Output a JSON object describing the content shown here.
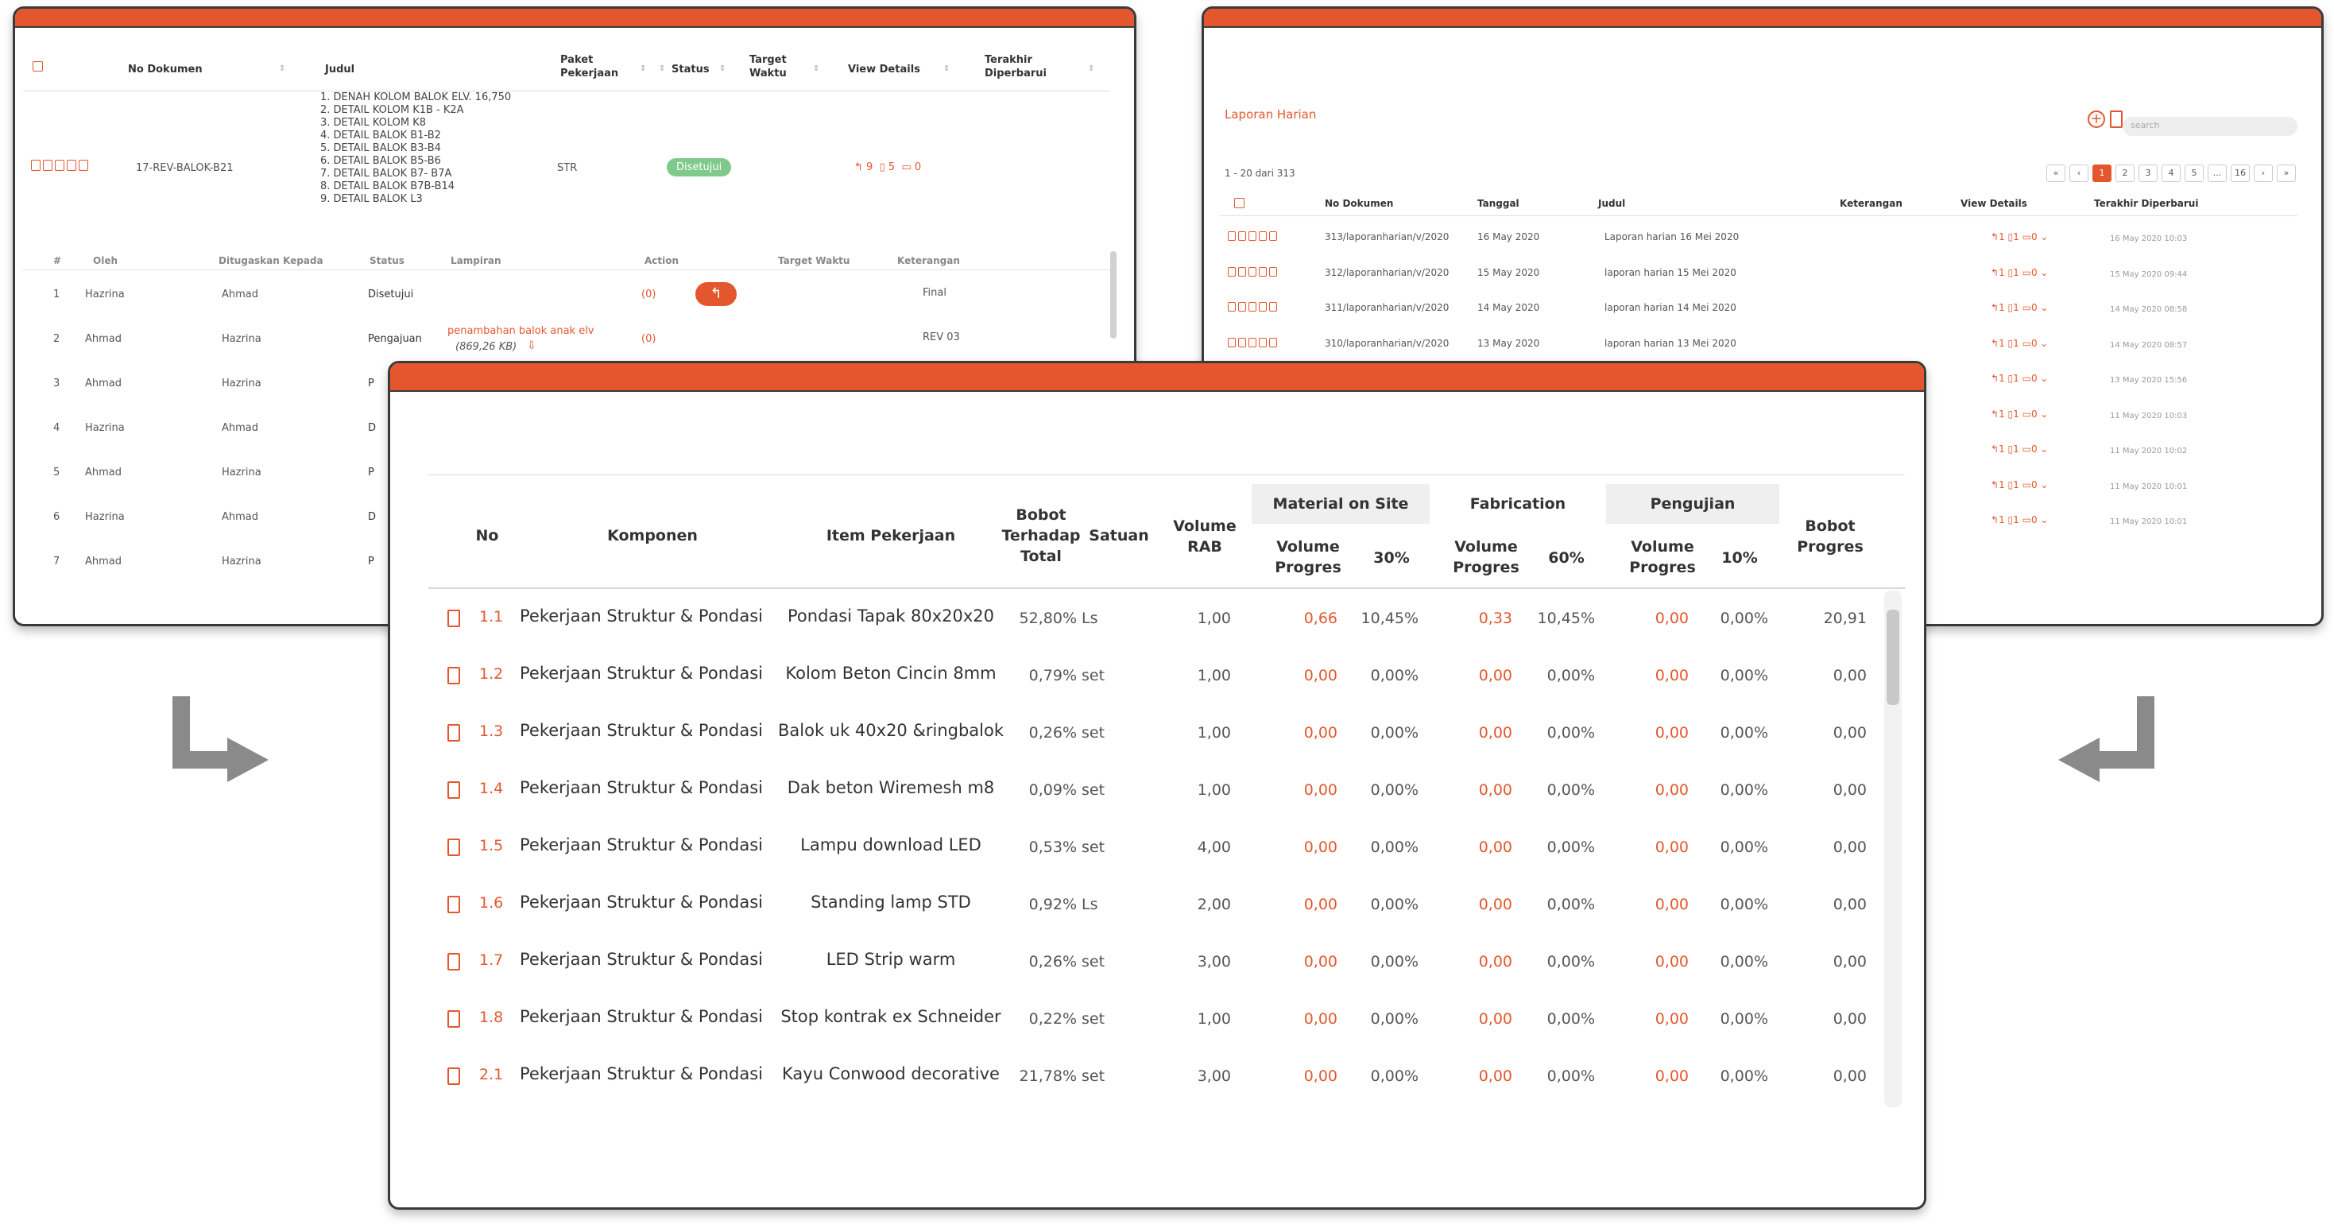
{
  "doc_window": {
    "headers": [
      "No Dokumen",
      "Judul",
      "Paket Pekerjaan",
      "Status",
      "Target Waktu",
      "View Details",
      "Terakhir Diperbarui"
    ],
    "row": {
      "no_dokumen": "17-REV-BALOK-B21",
      "judul_items": [
        "1. DENAH KOLOM BALOK ELV. 16,750",
        "2. DETAIL KOLOM K1B - K2A",
        "3. DETAIL KOLOM K8",
        "4. DETAIL BALOK B1-B2",
        "5. DETAIL BALOK B3-B4",
        "6. DETAIL BALOK B5-B6",
        "7. DETAIL BALOK B7- B7A",
        "8. DETAIL BALOK B7B-B14",
        "9. DETAIL BALOK L3"
      ],
      "paket": "STR",
      "status": "Disetujui",
      "view_revisions": "9",
      "view_files": "5",
      "view_comments": "0"
    },
    "sub_headers": [
      "#",
      "Oleh",
      "Ditugaskan Kepada",
      "Status",
      "Lampiran",
      "Action",
      "Target Waktu",
      "Keterangan"
    ],
    "sub_rows": [
      {
        "no": "1",
        "oleh": "Hazrina",
        "kepada": "Ahmad",
        "status": "Disetujui",
        "lampiran": "",
        "lampiran_size": "",
        "comments": "(0)",
        "keterangan": "Final"
      },
      {
        "no": "2",
        "oleh": "Ahmad",
        "kepada": "Hazrina",
        "status": "Pengajuan",
        "lampiran": "penambahan balok anak elv",
        "lampiran_size": "(869,26 KB)",
        "comments": "(0)",
        "keterangan": "REV 03"
      },
      {
        "no": "3",
        "oleh": "Ahmad",
        "kepada": "Hazrina",
        "status": "P",
        "lampiran": "",
        "lampiran_size": "",
        "comments": "",
        "keterangan": ""
      },
      {
        "no": "4",
        "oleh": "Hazrina",
        "kepada": "Ahmad",
        "status": "D",
        "lampiran": "",
        "lampiran_size": "",
        "comments": "",
        "keterangan": ""
      },
      {
        "no": "5",
        "oleh": "Ahmad",
        "kepada": "Hazrina",
        "status": "P",
        "lampiran": "",
        "lampiran_size": "",
        "comments": "",
        "keterangan": ""
      },
      {
        "no": "6",
        "oleh": "Hazrina",
        "kepada": "Ahmad",
        "status": "D",
        "lampiran": "",
        "lampiran_size": "",
        "comments": "",
        "keterangan": ""
      },
      {
        "no": "7",
        "oleh": "Ahmad",
        "kepada": "Hazrina",
        "status": "P",
        "lampiran": "",
        "lampiran_size": "",
        "comments": "",
        "keterangan": ""
      }
    ]
  },
  "laporan_window": {
    "title": "Laporan Harian",
    "search_placeholder": "search",
    "count_text": "1 - 20 dari 313",
    "pager": [
      "«",
      "‹",
      "1",
      "2",
      "3",
      "4",
      "5",
      "...",
      "16",
      "›",
      "»"
    ],
    "headers": [
      "No Dokumen",
      "Tanggal",
      "Judul",
      "Keterangan",
      "View Details",
      "Terakhir Diperbarui"
    ],
    "rows": [
      {
        "no": "313/laporanharian/v/2020",
        "tanggal": "16 May 2020",
        "judul": "Laporan harian 16 Mei 2020",
        "updated": "16 May 2020 10:03"
      },
      {
        "no": "312/laporanharian/v/2020",
        "tanggal": "15 May 2020",
        "judul": "laporan harian 15 Mei 2020",
        "updated": "15 May 2020 09:44"
      },
      {
        "no": "311/laporanharian/v/2020",
        "tanggal": "14 May 2020",
        "judul": "laporan harian 14 Mei 2020",
        "updated": "14 May 2020 08:58"
      },
      {
        "no": "310/laporanharian/v/2020",
        "tanggal": "13 May 2020",
        "judul": "laporan harian 13 Mei 2020",
        "updated": "14 May 2020 08:57"
      },
      {
        "no": "",
        "tanggal": "",
        "judul": "",
        "updated": "13 May 2020 15:56"
      },
      {
        "no": "",
        "tanggal": "",
        "judul": "",
        "updated": "11 May 2020 10:03"
      },
      {
        "no": "",
        "tanggal": "",
        "judul": "",
        "updated": "11 May 2020 10:02"
      },
      {
        "no": "",
        "tanggal": "",
        "judul": "",
        "updated": "11 May 2020 10:01"
      },
      {
        "no": "",
        "tanggal": "",
        "judul": "",
        "updated": "11 May 2020 10:01"
      }
    ],
    "view_counts": {
      "rev": "1",
      "file": "1",
      "comment": "0"
    }
  },
  "progress_window": {
    "headers": {
      "no": "No",
      "komponen": "Komponen",
      "item": "Item Pekerjaan",
      "bobot": "Bobot Terhadap Total",
      "satuan": "Satuan",
      "volume_rab": "Volume RAB",
      "group_material": "Material on Site",
      "group_fabrication": "Fabrication",
      "group_pengujian": "Pengujian",
      "volume_progres": "Volume Progres",
      "pct_material": "30%",
      "pct_fabrication": "60%",
      "pct_pengujian": "10%",
      "bobot_progres": "Bobot Progres"
    },
    "rows": [
      {
        "no": "1.1",
        "komponen": "Pekerjaan Struktur & Pondasi",
        "item": "Pondasi Tapak 80x20x20",
        "bobot": "52,80%",
        "satuan": "Ls",
        "vol": "1,00",
        "m_vol": "0,66",
        "m_pct": "10,45%",
        "f_vol": "0,33",
        "f_pct": "10,45%",
        "p_vol": "0,00",
        "p_pct": "0,00%",
        "bobot_progres": "20,91"
      },
      {
        "no": "1.2",
        "komponen": "Pekerjaan Struktur & Pondasi",
        "item": "Kolom Beton Cincin 8mm",
        "bobot": "0,79%",
        "satuan": "set",
        "vol": "1,00",
        "m_vol": "0,00",
        "m_pct": "0,00%",
        "f_vol": "0,00",
        "f_pct": "0,00%",
        "p_vol": "0,00",
        "p_pct": "0,00%",
        "bobot_progres": "0,00"
      },
      {
        "no": "1.3",
        "komponen": "Pekerjaan Struktur & Pondasi",
        "item": "Balok uk 40x20 &ringbalok",
        "bobot": "0,26%",
        "satuan": "set",
        "vol": "1,00",
        "m_vol": "0,00",
        "m_pct": "0,00%",
        "f_vol": "0,00",
        "f_pct": "0,00%",
        "p_vol": "0,00",
        "p_pct": "0,00%",
        "bobot_progres": "0,00"
      },
      {
        "no": "1.4",
        "komponen": "Pekerjaan Struktur & Pondasi",
        "item": "Dak beton Wiremesh m8",
        "bobot": "0,09%",
        "satuan": "set",
        "vol": "1,00",
        "m_vol": "0,00",
        "m_pct": "0,00%",
        "f_vol": "0,00",
        "f_pct": "0,00%",
        "p_vol": "0,00",
        "p_pct": "0,00%",
        "bobot_progres": "0,00"
      },
      {
        "no": "1.5",
        "komponen": "Pekerjaan Struktur & Pondasi",
        "item": "Lampu download LED",
        "bobot": "0,53%",
        "satuan": "set",
        "vol": "4,00",
        "m_vol": "0,00",
        "m_pct": "0,00%",
        "f_vol": "0,00",
        "f_pct": "0,00%",
        "p_vol": "0,00",
        "p_pct": "0,00%",
        "bobot_progres": "0,00"
      },
      {
        "no": "1.6",
        "komponen": "Pekerjaan Struktur & Pondasi",
        "item": "Standing lamp STD",
        "bobot": "0,92%",
        "satuan": "Ls",
        "vol": "2,00",
        "m_vol": "0,00",
        "m_pct": "0,00%",
        "f_vol": "0,00",
        "f_pct": "0,00%",
        "p_vol": "0,00",
        "p_pct": "0,00%",
        "bobot_progres": "0,00"
      },
      {
        "no": "1.7",
        "komponen": "Pekerjaan Struktur & Pondasi",
        "item": "LED Strip warm",
        "bobot": "0,26%",
        "satuan": "set",
        "vol": "3,00",
        "m_vol": "0,00",
        "m_pct": "0,00%",
        "f_vol": "0,00",
        "f_pct": "0,00%",
        "p_vol": "0,00",
        "p_pct": "0,00%",
        "bobot_progres": "0,00"
      },
      {
        "no": "1.8",
        "komponen": "Pekerjaan Struktur & Pondasi",
        "item": "Stop kontrak ex Schneider",
        "bobot": "0,22%",
        "satuan": "set",
        "vol": "1,00",
        "m_vol": "0,00",
        "m_pct": "0,00%",
        "f_vol": "0,00",
        "f_pct": "0,00%",
        "p_vol": "0,00",
        "p_pct": "0,00%",
        "bobot_progres": "0,00"
      },
      {
        "no": "2.1",
        "komponen": "Pekerjaan Struktur & Pondasi",
        "item": "Kayu Conwood decorative",
        "bobot": "21,78%",
        "satuan": "set",
        "vol": "3,00",
        "m_vol": "0,00",
        "m_pct": "0,00%",
        "f_vol": "0,00",
        "f_pct": "0,00%",
        "p_vol": "0,00",
        "p_pct": "0,00%",
        "bobot_progres": "0,00"
      }
    ]
  },
  "colors": {
    "accent": "#e4572e",
    "approved": "#7fc98a",
    "arrow": "#8a8a8a"
  }
}
